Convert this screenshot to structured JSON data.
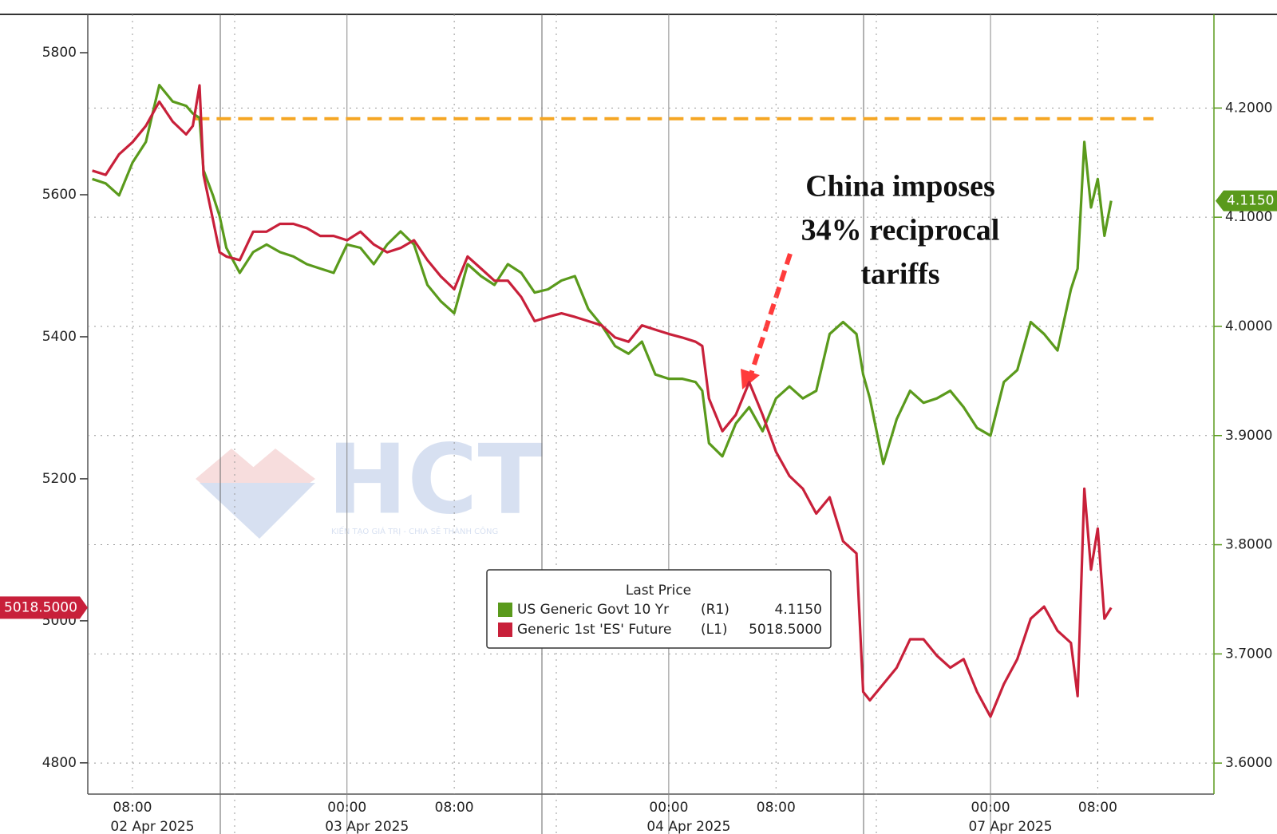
{
  "chart_data": {
    "type": "line",
    "skip_weekends": true,
    "x": [
      "2025-04-02T05:00",
      "2025-04-02T06:00",
      "2025-04-02T07:00",
      "2025-04-02T08:00",
      "2025-04-02T09:00",
      "2025-04-02T10:00",
      "2025-04-02T11:00",
      "2025-04-02T12:00",
      "2025-04-02T12:30",
      "2025-04-02T13:00",
      "2025-04-02T13:18",
      "2025-04-02T14:00",
      "2025-04-02T14:30",
      "2025-04-02T15:00",
      "2025-04-02T16:00",
      "2025-04-02T17:00",
      "2025-04-02T18:00",
      "2025-04-02T19:00",
      "2025-04-02T20:00",
      "2025-04-02T21:00",
      "2025-04-02T22:00",
      "2025-04-02T23:00",
      "2025-04-03T00:00",
      "2025-04-03T01:00",
      "2025-04-03T02:00",
      "2025-04-03T03:00",
      "2025-04-03T04:00",
      "2025-04-03T05:00",
      "2025-04-03T06:00",
      "2025-04-03T07:00",
      "2025-04-03T08:00",
      "2025-04-03T09:00",
      "2025-04-03T10:00",
      "2025-04-03T11:00",
      "2025-04-03T12:00",
      "2025-04-03T13:00",
      "2025-04-03T14:00",
      "2025-04-03T15:00",
      "2025-04-03T16:00",
      "2025-04-03T17:00",
      "2025-04-03T18:00",
      "2025-04-03T19:00",
      "2025-04-03T20:00",
      "2025-04-03T21:00",
      "2025-04-03T22:00",
      "2025-04-03T23:00",
      "2025-04-04T00:00",
      "2025-04-04T01:00",
      "2025-04-04T02:00",
      "2025-04-04T02:30",
      "2025-04-04T03:00",
      "2025-04-04T04:00",
      "2025-04-04T05:00",
      "2025-04-04T06:00",
      "2025-04-04T07:00",
      "2025-04-04T08:00",
      "2025-04-04T09:00",
      "2025-04-04T10:00",
      "2025-04-04T11:00",
      "2025-04-04T12:00",
      "2025-04-04T13:00",
      "2025-04-04T14:00",
      "2025-04-04T14:30",
      "2025-04-04T15:00",
      "2025-04-04T16:00",
      "2025-04-04T17:00",
      "2025-04-04T18:00",
      "2025-04-04T19:00",
      "2025-04-04T20:00",
      "2025-04-04T21:00",
      "2025-04-04T22:00",
      "2025-04-04T23:00",
      "2025-04-07T00:00",
      "2025-04-07T01:00",
      "2025-04-07T02:00",
      "2025-04-07T03:00",
      "2025-04-07T04:00",
      "2025-04-07T05:00",
      "2025-04-07T06:00",
      "2025-04-07T06:30",
      "2025-04-07T07:00",
      "2025-04-07T07:30",
      "2025-04-07T08:00",
      "2025-04-07T08:30",
      "2025-04-07T09:00"
    ],
    "series": [
      {
        "name": "US Generic Govt 10 Yr",
        "axis_tag": "(R1)",
        "axis": "y2",
        "color": "#5a9a1c",
        "last_label": "4.1150",
        "values": [
          4.135,
          4.131,
          4.12,
          4.15,
          4.169,
          4.221,
          4.206,
          4.202,
          4.195,
          4.191,
          4.143,
          4.12,
          4.101,
          4.072,
          4.049,
          4.068,
          4.075,
          4.068,
          4.064,
          4.057,
          4.053,
          4.049,
          4.075,
          4.072,
          4.057,
          4.075,
          4.087,
          4.075,
          4.038,
          4.023,
          4.012,
          4.057,
          4.046,
          4.038,
          4.057,
          4.049,
          4.031,
          4.034,
          4.042,
          4.046,
          4.016,
          4.001,
          3.982,
          3.975,
          3.986,
          3.956,
          3.952,
          3.952,
          3.949,
          3.941,
          3.893,
          3.881,
          3.911,
          3.926,
          3.904,
          3.934,
          3.945,
          3.934,
          3.941,
          3.993,
          4.004,
          3.993,
          3.956,
          3.934,
          3.874,
          3.915,
          3.941,
          3.93,
          3.934,
          3.941,
          3.926,
          3.907,
          3.9,
          3.949,
          3.96,
          4.004,
          3.993,
          3.978,
          4.034,
          4.053,
          4.169,
          4.109,
          4.135,
          4.083,
          4.115
        ]
      },
      {
        "name": "Generic 1st 'ES' Future",
        "axis_tag": "(L1)",
        "axis": "y",
        "color": "#c8203a",
        "last_label": "5018.5000",
        "values": [
          5634,
          5628,
          5657,
          5674,
          5697,
          5731,
          5703,
          5685,
          5697,
          5754,
          5628,
          5565,
          5519,
          5513,
          5508,
          5548,
          5548,
          5559,
          5559,
          5553,
          5542,
          5542,
          5536,
          5548,
          5530,
          5519,
          5525,
          5536,
          5508,
          5485,
          5467,
          5513,
          5496,
          5479,
          5479,
          5456,
          5422,
          5428,
          5433,
          5428,
          5422,
          5416,
          5399,
          5393,
          5416,
          5410,
          5404,
          5399,
          5393,
          5387,
          5313,
          5267,
          5290,
          5336,
          5290,
          5238,
          5204,
          5186,
          5151,
          5174,
          5112,
          5095,
          4900,
          4888,
          4911,
          4934,
          4974,
          4974,
          4951,
          4934,
          4946,
          4900,
          4865,
          4911,
          4946,
          5003,
          5020,
          4986,
          4969,
          4894,
          5186,
          5072,
          5130,
          5003,
          5018.5
        ]
      }
    ],
    "xlim": [
      "2025-04-02T04:40",
      "2025-04-07T16:40"
    ],
    "xticks": [
      {
        "value": "2025-04-02T08:00",
        "label": "08:00"
      },
      {
        "value": "2025-04-03T00:00",
        "label": "00:00"
      },
      {
        "value": "2025-04-03T08:00",
        "label": "08:00"
      },
      {
        "value": "2025-04-04T00:00",
        "label": "00:00"
      },
      {
        "value": "2025-04-04T08:00",
        "label": "08:00"
      },
      {
        "value": "2025-04-07T00:00",
        "label": "00:00"
      },
      {
        "value": "2025-04-07T08:00",
        "label": "08:00"
      }
    ],
    "date_labels": [
      {
        "value": "2025-04-02T08:00",
        "label": "02 Apr 2025"
      },
      {
        "value": "2025-04-03T00:00",
        "label": "03 Apr 2025"
      },
      {
        "value": "2025-04-04T00:00",
        "label": "04 Apr 2025"
      },
      {
        "value": "2025-04-07T00:00",
        "label": "07 Apr 2025"
      }
    ],
    "ylim": [
      4756,
      5854
    ],
    "yticks": [
      4800,
      5000,
      5200,
      5400,
      5600,
      5800
    ],
    "y2lim": [
      3.5716,
      4.2858
    ],
    "y2ticks": [
      {
        "value": 3.6,
        "label": "3.6000"
      },
      {
        "value": 3.7,
        "label": "3.7000"
      },
      {
        "value": 3.8,
        "label": "3.8000"
      },
      {
        "value": 3.9,
        "label": "3.9000"
      },
      {
        "value": 4.0,
        "label": "4.0000"
      },
      {
        "value": 4.1,
        "label": "4.1000"
      },
      {
        "value": 4.2,
        "label": "4.2000"
      }
    ],
    "grid": "y2",
    "hline": {
      "value": 5707,
      "axis": "y",
      "color": "#f5a623",
      "x": [
        "2025-04-02T12:40",
        "2025-04-07T12:10"
      ]
    },
    "annotation": [
      "China imposes",
      "34% reciprocal",
      "tariffs"
    ],
    "legend_title": "Last Price",
    "watermark": "HCT",
    "watermark_tagline": "KIẾN TẠO GIÁ TRỊ - CHIA SẺ THÀNH CÔNG"
  }
}
